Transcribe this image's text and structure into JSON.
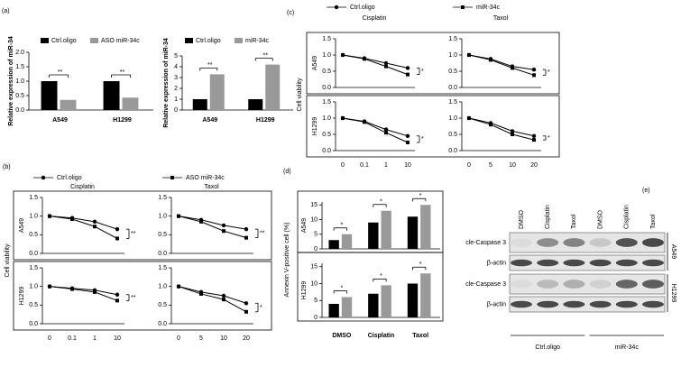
{
  "chart_data": [
    {
      "type": "bar",
      "panel": "(a)",
      "y_label": "Relative expression of miR-34",
      "categories": [
        "A549",
        "H1299"
      ],
      "series": [
        {
          "name": "Ctrl.oligo",
          "color": "#000000",
          "values": [
            1.0,
            1.0
          ]
        },
        {
          "name": "ASO miR-34c",
          "color": "#999999",
          "values": [
            0.35,
            0.43
          ]
        }
      ],
      "significance": [
        "**",
        "**"
      ],
      "ylim": [
        0,
        2
      ],
      "yticks": [
        {
          "value": 0,
          "label": "0.0"
        },
        {
          "value": 0.5,
          "label": "0.5"
        },
        {
          "value": 1,
          "label": "1.0"
        },
        {
          "value": 1.5,
          "label": "1.5"
        },
        {
          "value": 2,
          "label": "2.0"
        }
      ]
    },
    {
      "type": "bar",
      "y_label": "Relative expression of miR-34",
      "categories": [
        "A549",
        "H1299"
      ],
      "series": [
        {
          "name": "Ctrl.oligo",
          "color": "#000000",
          "values": [
            1.0,
            1.0
          ]
        },
        {
          "name": "miR-34c",
          "color": "#999999",
          "values": [
            3.3,
            4.2
          ]
        }
      ],
      "significance": [
        "**",
        "**"
      ],
      "ylim": [
        0,
        5
      ],
      "yticks": [
        0,
        1,
        2,
        3,
        4,
        5
      ]
    },
    {
      "type": "line",
      "panel": "(b)",
      "y_label": "Cell viability",
      "series": [
        {
          "name": "Ctrl.oligo",
          "color": "#000000",
          "marker": "circle"
        },
        {
          "name": "ASO miR-34c",
          "color": "#000000",
          "marker": "square"
        }
      ],
      "columns": [
        {
          "title": "Cisplatin",
          "categories": [
            "0",
            "0.1",
            "1",
            "10"
          ]
        },
        {
          "title": "Taxol",
          "categories": [
            "0",
            "5",
            "10",
            "20"
          ]
        }
      ],
      "rows": [
        {
          "label": "A549",
          "values": [
            [
              [
                1.0,
                0.95,
                0.85,
                0.65
              ],
              [
                1.0,
                0.92,
                0.72,
                0.4
              ]
            ],
            [
              [
                1.0,
                0.9,
                0.75,
                0.65
              ],
              [
                1.0,
                0.85,
                0.6,
                0.42
              ]
            ]
          ],
          "significance": [
            "**",
            "**"
          ]
        },
        {
          "label": "H1299",
          "values": [
            [
              [
                1.0,
                0.95,
                0.9,
                0.78
              ],
              [
                1.0,
                0.93,
                0.85,
                0.62
              ]
            ],
            [
              [
                1.0,
                0.85,
                0.75,
                0.55
              ],
              [
                1.0,
                0.8,
                0.65,
                0.32
              ]
            ]
          ],
          "significance": [
            "**",
            "*"
          ]
        }
      ],
      "ylim": [
        0,
        1.5
      ],
      "yticks": [
        {
          "value": 0,
          "label": "0.0"
        },
        {
          "value": 0.5,
          "label": "0.5"
        },
        {
          "value": 1,
          "label": "1.0"
        },
        {
          "value": 1.5,
          "label": "1.5"
        }
      ]
    },
    {
      "type": "line",
      "panel": "(c)",
      "y_label": "Cell viability",
      "series": [
        {
          "name": "Ctrl.oligo",
          "color": "#000000",
          "marker": "circle"
        },
        {
          "name": "miR-34c",
          "color": "#000000",
          "marker": "square"
        }
      ],
      "columns": [
        {
          "title": "Cisplatin",
          "categories": [
            "0",
            "0.1",
            "1",
            "10"
          ]
        },
        {
          "title": "Taxol",
          "categories": [
            "0",
            "5",
            "10",
            "20"
          ]
        }
      ],
      "rows": [
        {
          "label": "A549",
          "values": [
            [
              [
                1.0,
                0.9,
                0.75,
                0.6
              ],
              [
                1.0,
                0.88,
                0.65,
                0.4
              ]
            ],
            [
              [
                1.0,
                0.88,
                0.65,
                0.55
              ],
              [
                1.0,
                0.85,
                0.6,
                0.38
              ]
            ]
          ],
          "significance": [
            "*",
            "*"
          ]
        },
        {
          "label": "H1299",
          "values": [
            [
              [
                1.0,
                0.9,
                0.65,
                0.45
              ],
              [
                1.0,
                0.88,
                0.55,
                0.25
              ]
            ],
            [
              [
                1.0,
                0.85,
                0.6,
                0.45
              ],
              [
                1.0,
                0.8,
                0.5,
                0.33
              ]
            ]
          ],
          "significance": [
            "*",
            "*"
          ]
        }
      ],
      "ylim": [
        0,
        1.5
      ],
      "yticks": [
        {
          "value": 0,
          "label": "0.0"
        },
        {
          "value": 0.5,
          "label": "0.5"
        },
        {
          "value": 1,
          "label": "1.0"
        },
        {
          "value": 1.5,
          "label": "1.5"
        }
      ]
    },
    {
      "type": "bar",
      "panel": "(d)",
      "y_label": "Annexin V-positive cell (%)",
      "categories": [
        "DMSO",
        "Cisplatin",
        "Taxol"
      ],
      "rows": [
        {
          "label": "A549",
          "series": [
            {
              "color": "#000000",
              "values": [
                3,
                9,
                11
              ]
            },
            {
              "color": "#999999",
              "values": [
                5,
                13,
                15
              ]
            }
          ],
          "significance": [
            "*",
            "*",
            "*"
          ]
        },
        {
          "label": "H1299",
          "series": [
            {
              "color": "#000000",
              "values": [
                4,
                7,
                10
              ]
            },
            {
              "color": "#999999",
              "values": [
                6,
                9.5,
                13
              ]
            }
          ],
          "significance": [
            "*",
            "*",
            "*"
          ]
        }
      ],
      "ylim": [
        0,
        16
      ],
      "yticks": [
        0,
        5,
        10,
        15
      ]
    }
  ],
  "blot": {
    "panel": "(e)",
    "lanes": [
      "DMSO",
      "Cisplatin",
      "Taxol",
      "DMSO",
      "Cisplatin",
      "Taxol"
    ],
    "rows": [
      "cle-Caspase 3",
      "β-actin",
      "cle-Caspase 3",
      "β-actin"
    ],
    "cell_lines": [
      "A549",
      "H1299"
    ],
    "groups": [
      "Ctrl.oligo",
      "miR-34c"
    ]
  }
}
